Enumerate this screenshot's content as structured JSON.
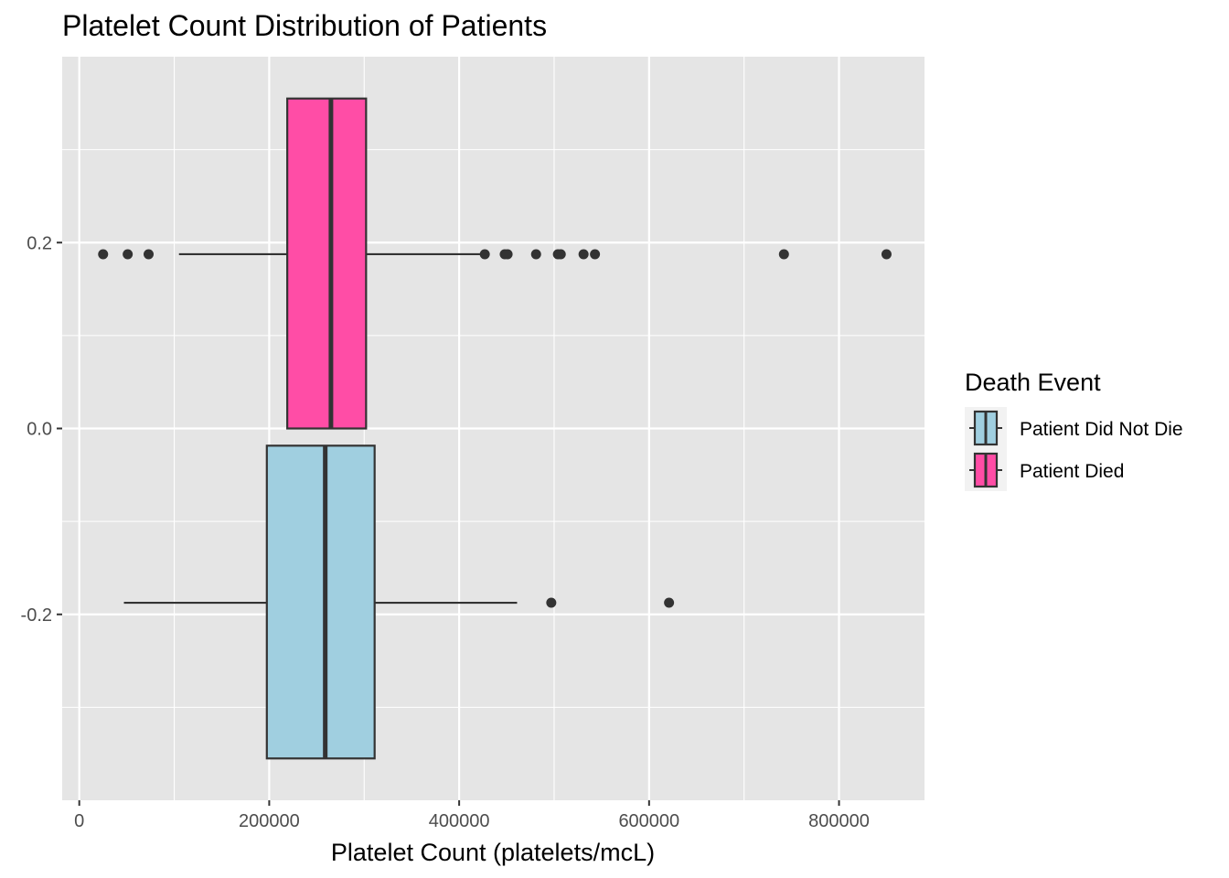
{
  "chart_data": {
    "type": "boxplot",
    "orientation": "horizontal",
    "title": "Platelet Count Distribution of Patients",
    "xlabel": "Platelet Count (platelets/mcL)",
    "ylabel": "",
    "xlim": [
      -18000,
      890000
    ],
    "ylim": [
      -0.4,
      0.4
    ],
    "x_ticks": [
      0,
      200000,
      400000,
      600000,
      800000
    ],
    "x_tick_labels": [
      "0",
      "200000",
      "400000",
      "600000",
      "800000"
    ],
    "y_ticks": [
      -0.2,
      0.0,
      0.2
    ],
    "y_tick_labels": [
      "-0.2",
      "0.0",
      "0.2"
    ],
    "grid": true,
    "legend": {
      "title": "Death Event",
      "position": "right",
      "entries": [
        {
          "label": "Patient Did Not Die",
          "color": "#A0CFE0"
        },
        {
          "label": "Patient Died",
          "color": "#FF4DA6"
        }
      ]
    },
    "series": [
      {
        "name": "Patient Died",
        "color": "#FF4DA6",
        "y": 0.1875,
        "box_y_range": [
          0.0,
          0.355
        ],
        "whisker_low": 105000,
        "q1": 219000,
        "median": 265000,
        "q3": 302000,
        "whisker_high": 427000,
        "outliers": [
          25100,
          51000,
          73000,
          427000,
          448000,
          451000,
          481000,
          504000,
          507000,
          531000,
          543000,
          742000,
          850000
        ]
      },
      {
        "name": "Patient Did Not Die",
        "color": "#A0CFE0",
        "y": -0.1875,
        "box_y_range": [
          -0.355,
          -0.0185
        ],
        "whisker_low": 47000,
        "q1": 197500,
        "median": 259000,
        "q3": 311000,
        "whisker_high": 461000,
        "outliers": [
          497000,
          621000
        ]
      }
    ]
  }
}
